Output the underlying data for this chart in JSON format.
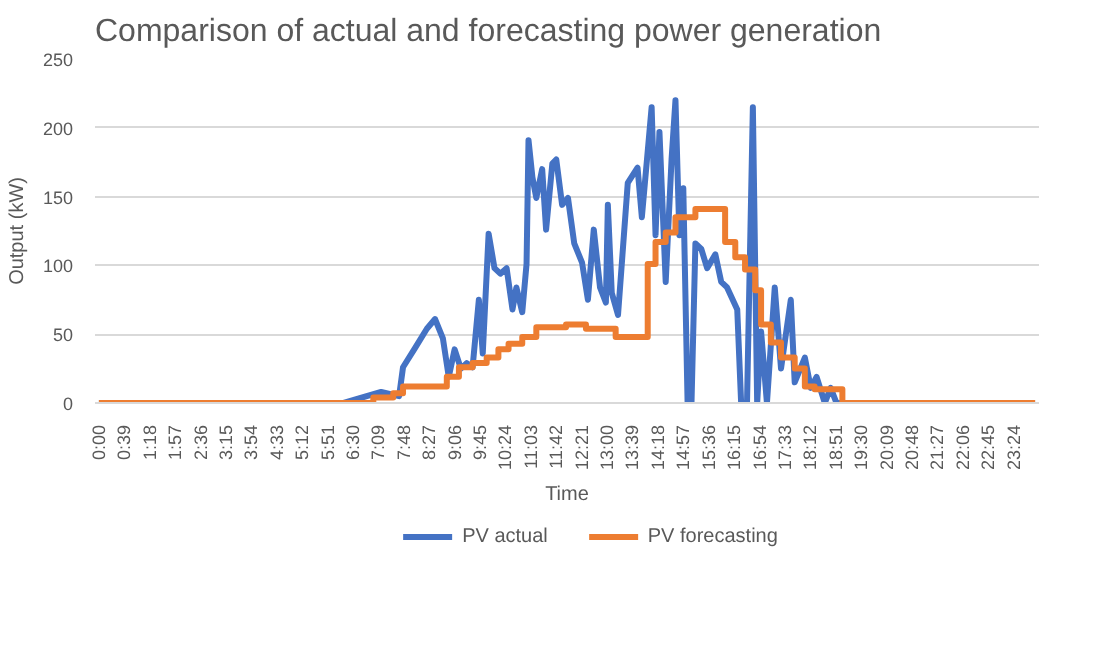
{
  "chart_data": {
    "type": "line",
    "title": "Comparison of actual and forecasting power generation",
    "xlabel": "Time",
    "ylabel": "Output (kW)",
    "xlim": [
      -0.1,
      24.05
    ],
    "ylim": [
      0,
      250
    ],
    "yticks": [
      0,
      50,
      100,
      150,
      200,
      250
    ],
    "xticks": [
      {
        "value": 0,
        "label": "0:00"
      },
      {
        "value": 0.65,
        "label": "0:39"
      },
      {
        "value": 1.3,
        "label": "1:18"
      },
      {
        "value": 1.95,
        "label": "1:57"
      },
      {
        "value": 2.6,
        "label": "2:36"
      },
      {
        "value": 3.25,
        "label": "3:15"
      },
      {
        "value": 3.9,
        "label": "3:54"
      },
      {
        "value": 4.55,
        "label": "4:33"
      },
      {
        "value": 5.2,
        "label": "5:12"
      },
      {
        "value": 5.85,
        "label": "5:51"
      },
      {
        "value": 6.5,
        "label": "6:30"
      },
      {
        "value": 7.15,
        "label": "7:09"
      },
      {
        "value": 7.8,
        "label": "7:48"
      },
      {
        "value": 8.45,
        "label": "8:27"
      },
      {
        "value": 9.1,
        "label": "9:06"
      },
      {
        "value": 9.75,
        "label": "9:45"
      },
      {
        "value": 10.4,
        "label": "10:24"
      },
      {
        "value": 11.05,
        "label": "11:03"
      },
      {
        "value": 11.7,
        "label": "11:42"
      },
      {
        "value": 12.35,
        "label": "12:21"
      },
      {
        "value": 13,
        "label": "13:00"
      },
      {
        "value": 13.65,
        "label": "13:39"
      },
      {
        "value": 14.3,
        "label": "14:18"
      },
      {
        "value": 14.95,
        "label": "14:57"
      },
      {
        "value": 15.6,
        "label": "15:36"
      },
      {
        "value": 16.25,
        "label": "16:15"
      },
      {
        "value": 16.9,
        "label": "16:54"
      },
      {
        "value": 17.55,
        "label": "17:33"
      },
      {
        "value": 18.2,
        "label": "18:12"
      },
      {
        "value": 18.85,
        "label": "18:51"
      },
      {
        "value": 19.5,
        "label": "19:30"
      },
      {
        "value": 20.15,
        "label": "20:09"
      },
      {
        "value": 20.8,
        "label": "20:48"
      },
      {
        "value": 21.45,
        "label": "21:27"
      },
      {
        "value": 22.1,
        "label": "22:06"
      },
      {
        "value": 22.75,
        "label": "22:45"
      },
      {
        "value": 23.4,
        "label": "23:24"
      }
    ],
    "grid": "y",
    "legend": "bottom",
    "marker": "none",
    "line_style": "solid",
    "series": [
      {
        "name": "PV actual",
        "color": "#4472c4",
        "x": [
          0,
          6.26,
          7.22,
          7.68,
          7.78,
          8.09,
          8.39,
          8.6,
          8.8,
          8.95,
          9.1,
          9.26,
          9.41,
          9.56,
          9.72,
          9.82,
          9.97,
          10.12,
          10.27,
          10.43,
          10.58,
          10.68,
          10.83,
          10.94,
          10.99,
          11.09,
          11.19,
          11.34,
          11.44,
          11.6,
          11.7,
          11.85,
          12.0,
          12.16,
          12.36,
          12.51,
          12.66,
          12.82,
          12.97,
          13.02,
          13.12,
          13.28,
          13.53,
          13.78,
          13.89,
          14.14,
          14.24,
          14.34,
          14.5,
          14.65,
          14.75,
          14.85,
          14.95,
          15.06,
          15.16,
          15.26,
          15.41,
          15.56,
          15.77,
          15.92,
          16.07,
          16.33,
          16.43,
          16.58,
          16.73,
          16.84,
          16.94,
          17.09,
          17.29,
          17.45,
          17.7,
          17.8,
          18.06,
          18.21,
          18.36,
          18.57,
          18.72,
          18.87,
          23.95
        ],
        "values": [
          0,
          0,
          8,
          5,
          26,
          40,
          54,
          61,
          47,
          19,
          39,
          25,
          29,
          26,
          75,
          36,
          123,
          98,
          94,
          98,
          68,
          84,
          66,
          101,
          191,
          164,
          149,
          170,
          126,
          174,
          177,
          144,
          149,
          116,
          102,
          75,
          126,
          84,
          73,
          144,
          80,
          64,
          160,
          171,
          135,
          215,
          122,
          197,
          88,
          177,
          220,
          122,
          156,
          0,
          0,
          116,
          112,
          98,
          108,
          88,
          84,
          68,
          0,
          0,
          215,
          0,
          52,
          0,
          84,
          25,
          75,
          15,
          33,
          11,
          19,
          0,
          11,
          0,
          0
        ]
      },
      {
        "name": "PV forecasting",
        "color": "#ed7d31",
        "type": "step",
        "x": [
          0,
          7.02,
          7.53,
          7.78,
          8.9,
          9.21,
          9.56,
          9.92,
          10.22,
          10.48,
          10.83,
          11.19,
          11.95,
          12.46,
          13.22,
          14.04,
          14.24,
          14.5,
          14.75,
          15.26,
          16.02,
          16.28,
          16.53,
          16.79,
          16.94,
          17.19,
          17.45,
          17.8,
          18.06,
          18.31,
          19.02,
          23.95
        ],
        "values": [
          0,
          4,
          7,
          12,
          19,
          26,
          29,
          33,
          39,
          43,
          48,
          55,
          57,
          54,
          48,
          101,
          117,
          124,
          135,
          141,
          117,
          106,
          97,
          82,
          57,
          44,
          33,
          25,
          12,
          10,
          0,
          0
        ]
      }
    ]
  }
}
